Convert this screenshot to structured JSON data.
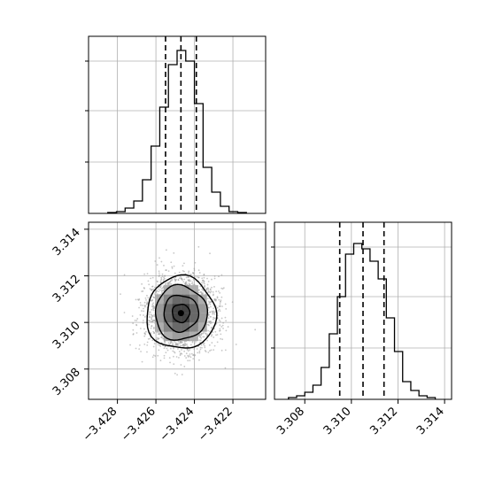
{
  "chart_data": [
    {
      "panel": "top-left",
      "type": "histogram",
      "title": "",
      "xlabel": "",
      "ylabel": "",
      "xlim": [
        -3.4295,
        -3.4203
      ],
      "ylim": [
        0,
        1.0
      ],
      "grid": true,
      "bin_edges": [
        -3.4285,
        -3.42805,
        -3.4276,
        -3.42715,
        -3.4267,
        -3.42625,
        -3.4258,
        -3.42535,
        -3.4249,
        -3.42445,
        -3.424,
        -3.42355,
        -3.4231,
        -3.42265,
        -3.4222,
        -3.42175,
        -3.4213
      ],
      "counts": [
        0.005,
        0.01,
        0.03,
        0.07,
        0.19,
        0.38,
        0.6,
        0.84,
        0.92,
        0.86,
        0.62,
        0.26,
        0.12,
        0.04,
        0.01,
        0.005
      ],
      "quantile_lines": [
        -3.4255,
        -3.4247,
        -3.4239
      ],
      "xticks": [],
      "yticks": []
    },
    {
      "panel": "bottom-left",
      "type": "scatter",
      "subtype": "2d-density-contour",
      "title": "",
      "xlabel": "",
      "ylabel": "",
      "xlim": [
        -3.4295,
        -3.4203
      ],
      "ylim": [
        3.3067,
        3.3143
      ],
      "grid": true,
      "center": [
        -3.4247,
        3.3104
      ],
      "spread": [
        0.0009,
        0.00078
      ],
      "contour_levels_sigma": [
        0.5,
        1.0,
        1.5,
        2.0
      ],
      "xticks": [
        -3.428,
        -3.426,
        -3.424,
        -3.422
      ],
      "xtick_labels": [
        "−3.428",
        "−3.426",
        "−3.424",
        "−3.422"
      ],
      "yticks": [
        3.308,
        3.31,
        3.312,
        3.314
      ],
      "ytick_labels": [
        "3.308",
        "3.310",
        "3.312",
        "3.314"
      ]
    },
    {
      "panel": "bottom-right",
      "type": "histogram",
      "title": "",
      "xlabel": "",
      "ylabel": "",
      "xlim": [
        3.3067,
        3.3143
      ],
      "ylim": [
        0,
        1.0
      ],
      "grid": true,
      "bin_edges": [
        3.3073,
        3.30765,
        3.308,
        3.30835,
        3.3087,
        3.30905,
        3.3094,
        3.30975,
        3.3101,
        3.31045,
        3.3108,
        3.31115,
        3.3115,
        3.31185,
        3.3122,
        3.31255,
        3.3129,
        3.31325,
        3.3136
      ],
      "counts": [
        0.01,
        0.02,
        0.04,
        0.08,
        0.18,
        0.37,
        0.58,
        0.82,
        0.88,
        0.85,
        0.78,
        0.68,
        0.46,
        0.27,
        0.1,
        0.05,
        0.02,
        0.01
      ],
      "quantile_lines": [
        3.3095,
        3.3105,
        3.3114
      ],
      "xticks": [
        3.308,
        3.31,
        3.312,
        3.314
      ],
      "xtick_labels": [
        "3.308",
        "3.310",
        "3.312",
        "3.314"
      ],
      "yticks": []
    }
  ]
}
